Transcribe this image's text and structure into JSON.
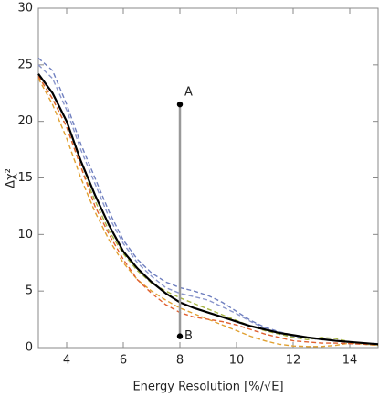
{
  "chart_data": {
    "type": "line",
    "xlabel": "Energy Resolution [%/√E]",
    "ylabel": "Δχ²",
    "x": [
      3,
      3.5,
      4,
      4.5,
      5,
      5.5,
      6,
      6.5,
      7,
      7.5,
      8,
      8.5,
      9,
      9.5,
      10,
      10.5,
      11,
      11.5,
      12,
      12.5,
      13,
      13.5,
      14,
      14.5,
      15
    ],
    "series": [
      {
        "color": "#6f7fbf",
        "dashed": true,
        "values": [
          25.6,
          24.5,
          21.5,
          18,
          15,
          12,
          9.5,
          7.8,
          6.6,
          5.8,
          5.3,
          5.0,
          4.6,
          4.0,
          3.2,
          2.4,
          1.8,
          1.4,
          1.1,
          0.9,
          0.75,
          0.6,
          0.5,
          0.4,
          0.35
        ]
      },
      {
        "color": "#8a96cc",
        "dashed": true,
        "values": [
          25,
          23.8,
          21,
          17.5,
          14.5,
          11.5,
          9.2,
          7.5,
          6.3,
          5.3,
          4.8,
          4.5,
          4.2,
          3.6,
          3.0,
          2.3,
          1.7,
          1.3,
          1.0,
          0.85,
          0.7,
          0.6,
          0.5,
          0.4,
          0.3
        ]
      },
      {
        "color": "#a8b545",
        "dashed": true,
        "values": [
          24,
          22,
          19.5,
          16,
          13,
          10.3,
          8.3,
          6.8,
          5.7,
          5,
          4.4,
          3.9,
          3.4,
          2.9,
          2.4,
          1.9,
          1.5,
          1.2,
          0.9,
          0.7,
          0.9,
          0.8,
          0.5,
          0.3,
          0.2
        ]
      },
      {
        "color": "#e0a030",
        "dashed": true,
        "values": [
          23.8,
          21.5,
          18.5,
          15,
          12,
          9.5,
          7.5,
          6,
          5,
          4.2,
          3.5,
          3.0,
          2.5,
          2.0,
          1.5,
          1.0,
          0.6,
          0.3,
          0.15,
          0.1,
          0.1,
          0.2,
          0.4,
          0.3,
          0.2
        ]
      },
      {
        "color": "#e06030",
        "dashed": true,
        "values": [
          24,
          22,
          19.5,
          16,
          12.5,
          10,
          7.8,
          6,
          4.8,
          3.8,
          3.1,
          2.7,
          2.5,
          2.3,
          2.0,
          1.6,
          1.2,
          0.9,
          0.6,
          0.5,
          0.4,
          0.4,
          0.35,
          0.3,
          0.25
        ]
      },
      {
        "color": "#000000",
        "dashed": false,
        "values": [
          24.2,
          22.5,
          20,
          16.5,
          13.5,
          10.8,
          8.5,
          7,
          5.8,
          4.8,
          4.0,
          3.5,
          3.1,
          2.7,
          2.3,
          1.9,
          1.6,
          1.3,
          1.1,
          0.9,
          0.75,
          0.6,
          0.5,
          0.4,
          0.3
        ]
      }
    ],
    "markers": [
      {
        "label": "A",
        "x": 8,
        "y": 21.5
      },
      {
        "label": "B",
        "x": 8,
        "y": 1
      }
    ],
    "xlim": [
      3,
      15
    ],
    "xticks": [
      4,
      6,
      8,
      10,
      12,
      14
    ],
    "ylim": [
      0,
      30
    ],
    "yticks": [
      0,
      5,
      10,
      15,
      20,
      25,
      30
    ]
  }
}
